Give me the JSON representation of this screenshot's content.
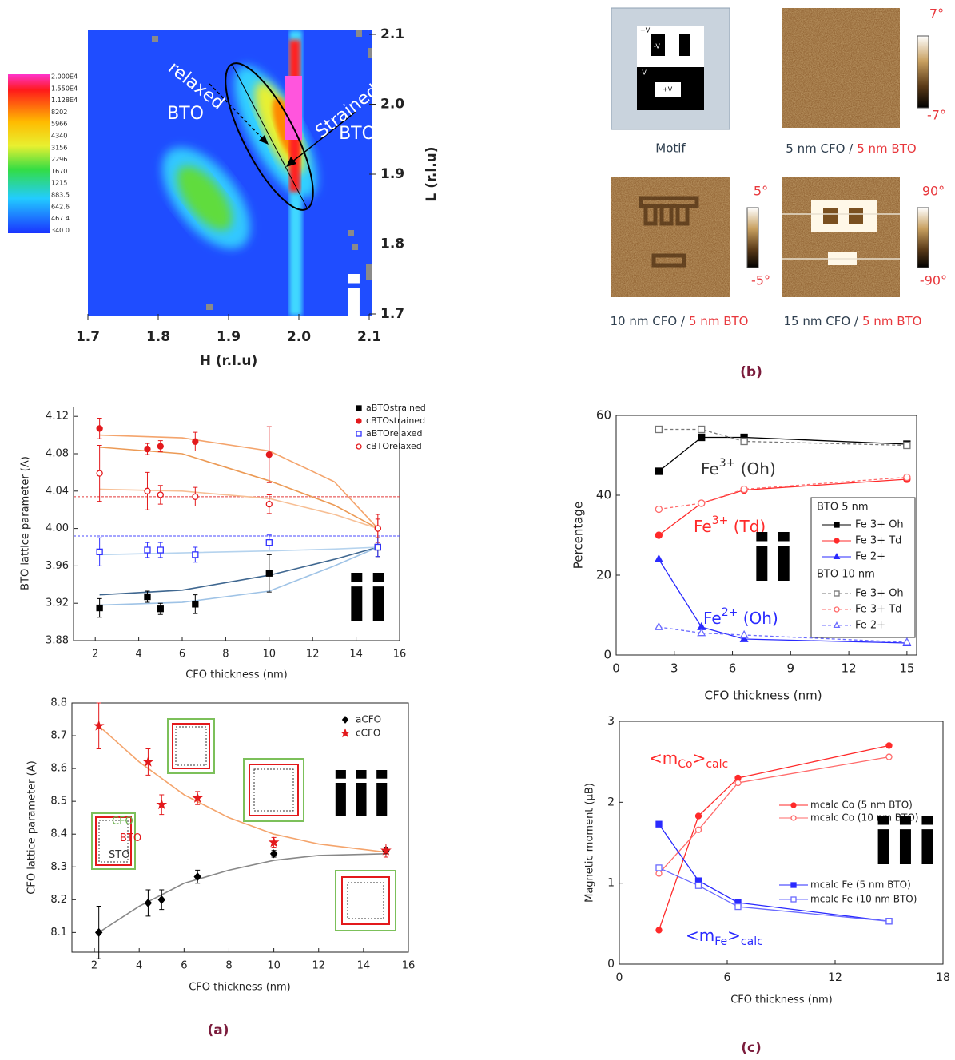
{
  "panel_labels": [
    "(a)",
    "(b)",
    "(c)"
  ],
  "afm": {
    "motif": {
      "caption": "Motif",
      "voltages": [
        "+V",
        "-V",
        "-V",
        "+V"
      ]
    },
    "images": [
      {
        "caption_cfo": "5 nm CFO /",
        "caption_bto": "5 nm BTO",
        "scale_max": "7°",
        "scale_min": "-7°"
      },
      {
        "caption_cfo": "10 nm CFO /",
        "caption_bto": "5 nm BTO",
        "scale_max": "5°",
        "scale_min": "-5°"
      },
      {
        "caption_cfo": "15 nm CFO /",
        "caption_bto": "5 nm BTO",
        "scale_max": "90°",
        "scale_min": "-90°"
      }
    ]
  },
  "chart_data": [
    {
      "type": "heatmap",
      "xlabel": "H (r.l.u)",
      "ylabel": "L (r.l.u)",
      "xlim": [
        1.7,
        2.1
      ],
      "ylim": [
        1.7,
        2.1
      ],
      "xticks": [
        1.7,
        1.8,
        1.9,
        {
          "value": 2,
          "label": "2.0"
        },
        2.1
      ],
      "yticks": [
        1.7,
        1.8,
        1.9,
        {
          "value": 2,
          "label": "2.0"
        },
        2.1
      ],
      "colorbar_ticks": [
        {
          "value": 20000,
          "label": "2.000E4"
        },
        {
          "value": 15500,
          "label": "1.550E4"
        },
        {
          "value": 11280,
          "label": "1.128E4"
        },
        8202,
        5966,
        4340,
        3156,
        2296,
        1670,
        1215,
        883.5,
        642.6,
        467.4,
        {
          "value": 340,
          "label": "340.0"
        }
      ],
      "annotations": [
        {
          "color": "#ffffff",
          "parts": [
            {
              "text": "relaxed"
            }
          ]
        },
        {
          "color": "#ffffff",
          "parts": [
            {
              "text": "BTO"
            }
          ]
        },
        {
          "color": "#ffffff",
          "parts": [
            {
              "text": "Strained"
            }
          ]
        },
        {
          "color": "#ffffff",
          "parts": [
            {
              "text": "BTO"
            }
          ]
        },
        {
          "color": "#ffffff",
          "parts": [
            {
              "text": "i"
            }
          ]
        }
      ]
    },
    {
      "type": "scatter",
      "xlabel": "CFO thickness (nm)",
      "ylabel": "BTO lattice parameter (A)",
      "xlim": [
        1,
        16
      ],
      "ylim": [
        3.88,
        4.13
      ],
      "xticks": [
        2,
        4,
        6,
        8,
        10,
        12,
        14,
        16
      ],
      "yticks": [
        3.88,
        3.92,
        3.96,
        {
          "value": 4,
          "label": "4.00"
        },
        4.04,
        4.08,
        4.12
      ],
      "x": [
        2.2,
        4.4,
        5,
        6.6,
        10,
        15
      ],
      "series": [
        {
          "name": "aBTOstrained",
          "color": "#000000",
          "marker": "square",
          "filled": true,
          "values": [
            3.915,
            3.927,
            3.914,
            3.919,
            3.952,
            3.98
          ],
          "errors": [
            0.01,
            0.006,
            0.006,
            0.01,
            0.02,
            0.01
          ]
        },
        {
          "name": "cBTOstrained",
          "color": "#e3191c",
          "marker": "circle",
          "filled": true,
          "values": [
            4.107,
            4.085,
            4.088,
            4.093,
            4.079,
            4.0
          ],
          "errors": [
            0.011,
            0.006,
            0.006,
            0.01,
            0.03,
            0.015
          ]
        },
        {
          "name": "aBTOrelaxed",
          "color": "#3333ff",
          "marker": "square",
          "filled": false,
          "values": [
            3.975,
            3.977,
            3.977,
            3.972,
            3.985,
            3.98
          ],
          "errors": [
            0.015,
            0.008,
            0.008,
            0.008,
            0.008,
            0.01
          ]
        },
        {
          "name": "cBTOrelaxed",
          "color": "#e3191c",
          "marker": "circle",
          "filled": false,
          "values": [
            4.059,
            4.04,
            4.036,
            4.034,
            4.026,
            4.0
          ],
          "errors": [
            0.03,
            0.02,
            0.01,
            0.01,
            0.01,
            0.01
          ]
        }
      ],
      "fits": [
        {
          "color": "#f4a46c",
          "x": [
            2.2,
            6,
            10,
            13,
            15
          ],
          "values": [
            4.1,
            4.097,
            4.083,
            4.05,
            4.0
          ]
        },
        {
          "color": "#ec9a55",
          "x": [
            2.2,
            6,
            10,
            13,
            15
          ],
          "values": [
            4.087,
            4.08,
            4.051,
            4.025,
            4.0
          ]
        },
        {
          "color": "#f7bf95",
          "x": [
            2.2,
            6,
            10,
            13,
            15
          ],
          "values": [
            4.042,
            4.04,
            4.032,
            4.015,
            4.0
          ]
        },
        {
          "color": "#3f6790",
          "x": [
            2.2,
            6,
            10,
            13,
            15
          ],
          "values": [
            3.929,
            3.934,
            3.95,
            3.967,
            3.98
          ]
        },
        {
          "color": "#9fc3e6",
          "x": [
            2.2,
            6,
            10,
            13,
            15
          ],
          "values": [
            3.918,
            3.921,
            3.933,
            3.96,
            3.98
          ]
        },
        {
          "color": "#b5d3ee",
          "x": [
            2.2,
            6,
            10,
            13,
            15
          ],
          "values": [
            3.972,
            3.974,
            3.976,
            3.978,
            3.98
          ]
        }
      ],
      "hlines": [
        {
          "value": 4.034,
          "color": "#e33b3b"
        },
        {
          "value": 3.992,
          "color": "#4a4aff"
        }
      ],
      "annotations": [
        {
          "color": "#000000",
          "parts": [
            {
              "text": "ii"
            }
          ]
        }
      ]
    },
    {
      "type": "scatter",
      "xlabel": "CFO thickness (nm)",
      "ylabel": "CFO lattice parameter (A)",
      "xlim": [
        1,
        16
      ],
      "ylim": [
        8.04,
        8.8
      ],
      "xticks": [
        2,
        4,
        6,
        8,
        10,
        12,
        14,
        16
      ],
      "yticks": [
        8.1,
        8.2,
        8.3,
        8.4,
        8.5,
        8.6,
        8.7,
        8.8
      ],
      "x": [
        2.2,
        4.4,
        5,
        6.6,
        10,
        15
      ],
      "series": [
        {
          "name": "aCFO",
          "color": "#000000",
          "marker": "diamond",
          "filled": true,
          "values": [
            8.1,
            8.19,
            8.2,
            8.27,
            8.34,
            8.35
          ],
          "errors": [
            0.08,
            0.04,
            0.03,
            0.02,
            0.01,
            0.01
          ]
        },
        {
          "name": "cCFO",
          "color": "#e3191c",
          "marker": "star",
          "filled": true,
          "values": [
            8.73,
            8.62,
            8.49,
            8.51,
            8.375,
            8.35
          ],
          "errors": [
            0.07,
            0.04,
            0.03,
            0.02,
            0.015,
            0.02
          ]
        }
      ],
      "fits": [
        {
          "color": "#f4a46c",
          "x": [
            2.2,
            4,
            6,
            8,
            10,
            12,
            15
          ],
          "values": [
            8.73,
            8.62,
            8.52,
            8.45,
            8.4,
            8.37,
            8.345
          ]
        },
        {
          "color": "#888888",
          "x": [
            2.2,
            4,
            6,
            8,
            10,
            12,
            15
          ],
          "values": [
            8.1,
            8.18,
            8.25,
            8.29,
            8.32,
            8.335,
            8.34
          ]
        }
      ],
      "annotations": [
        {
          "color": "#6ab04c",
          "parts": [
            {
              "text": "CFO"
            }
          ]
        },
        {
          "color": "#e3191c",
          "parts": [
            {
              "text": "BTO"
            }
          ]
        },
        {
          "color": "#333333",
          "parts": [
            {
              "text": "STO"
            }
          ]
        },
        {
          "color": "#000000",
          "parts": [
            {
              "text": "iii"
            }
          ]
        }
      ]
    },
    {
      "type": "line",
      "xlabel": "CFO thickness (nm)",
      "ylabel": "Percentage",
      "xlim": [
        0,
        15.5
      ],
      "ylim": [
        0,
        60
      ],
      "xticks": [
        0,
        3,
        6,
        9,
        12,
        15
      ],
      "yticks": [
        0,
        20,
        40,
        60
      ],
      "x": [
        2.2,
        4.4,
        6.6,
        15
      ],
      "series_groups": [
        {
          "name": "BTO 5 nm",
          "series": [
            {
              "name": "Fe 3+ Oh",
              "color": "#000000",
              "marker": "square",
              "filled": true,
              "line": true,
              "values": [
                46,
                54.5,
                54.5,
                52.8
              ]
            },
            {
              "name": "Fe 3+ Td",
              "color": "#ff2a2a",
              "marker": "circle",
              "filled": true,
              "line": true,
              "values": [
                30,
                38,
                41.3,
                44
              ]
            },
            {
              "name": "Fe 2+",
              "color": "#2a2aff",
              "marker": "triangle",
              "filled": true,
              "line": true,
              "values": [
                24,
                7,
                4,
                3
              ]
            }
          ]
        },
        {
          "name": "BTO 10 nm",
          "series": [
            {
              "name": "Fe 3+ Oh",
              "color": "#777777",
              "marker": "square",
              "filled": false,
              "line": true,
              "dashed": true,
              "values": [
                56.5,
                56.5,
                53.5,
                52.5
              ]
            },
            {
              "name": "Fe 3+ Td",
              "color": "#ff6a6a",
              "marker": "circle",
              "filled": false,
              "line": true,
              "dashed": true,
              "values": [
                36.5,
                38,
                41.5,
                44.5
              ]
            },
            {
              "name": "Fe 2+",
              "color": "#6a6aff",
              "marker": "triangle",
              "filled": false,
              "line": true,
              "dashed": true,
              "values": [
                7,
                5.5,
                5,
                3.2
              ]
            }
          ]
        }
      ],
      "annotations": [
        {
          "color": "#333333",
          "parts": [
            {
              "text": "Fe"
            },
            {
              "text": "3+",
              "shift": "super"
            },
            {
              "text": " (Oh)"
            }
          ]
        },
        {
          "color": "#ff2a2a",
          "parts": [
            {
              "text": "Fe"
            },
            {
              "text": "3+",
              "shift": "super"
            },
            {
              "text": " (Td)"
            }
          ]
        },
        {
          "color": "#2a2aff",
          "parts": [
            {
              "text": "Fe"
            },
            {
              "text": "2+",
              "shift": "super"
            },
            {
              "text": " (Oh)"
            }
          ]
        },
        {
          "color": "#000000",
          "parts": [
            {
              "text": "ii"
            }
          ]
        }
      ]
    },
    {
      "type": "line",
      "xlabel": "CFO thickness (nm)",
      "ylabel": "Magnetic moment (μB)",
      "xlim": [
        0,
        18
      ],
      "ylim": [
        0,
        3
      ],
      "xticks": [
        0,
        6,
        12,
        18
      ],
      "yticks": [
        0,
        1,
        2,
        3
      ],
      "x": [
        2.2,
        4.4,
        6.6,
        15
      ],
      "series": [
        {
          "name": "mcalc Co (5 nm BTO)",
          "color": "#ff2a2a",
          "marker": "circle",
          "filled": true,
          "line": true,
          "values": [
            0.42,
            1.83,
            2.3,
            2.7
          ]
        },
        {
          "name": "mcalc Co (10 nm BTO)",
          "color": "#ff6a6a",
          "marker": "circle",
          "filled": false,
          "line": true,
          "values": [
            1.12,
            1.66,
            2.24,
            2.56
          ]
        },
        {
          "name": "mcalc Fe (5 nm BTO)",
          "color": "#2a2aff",
          "marker": "square",
          "filled": true,
          "line": true,
          "values": [
            1.73,
            1.03,
            0.76,
            0.53
          ]
        },
        {
          "name": "mcalc Fe (10 nm BTO)",
          "color": "#6a6aff",
          "marker": "square",
          "filled": false,
          "line": true,
          "values": [
            1.19,
            0.97,
            0.71,
            0.53
          ]
        }
      ],
      "annotations": [
        {
          "color": "#ff2a2a",
          "parts": [
            {
              "text": "<m"
            },
            {
              "text": "Co",
              "shift": "sub"
            },
            {
              "text": ">"
            },
            {
              "text": "calc",
              "shift": "sub"
            }
          ]
        },
        {
          "color": "#2a2aff",
          "parts": [
            {
              "text": "<m"
            },
            {
              "text": "Fe",
              "shift": "sub"
            },
            {
              "text": ">"
            },
            {
              "text": "calc",
              "shift": "sub"
            }
          ]
        },
        {
          "color": "#000000",
          "parts": [
            {
              "text": "iii"
            }
          ]
        }
      ]
    }
  ]
}
